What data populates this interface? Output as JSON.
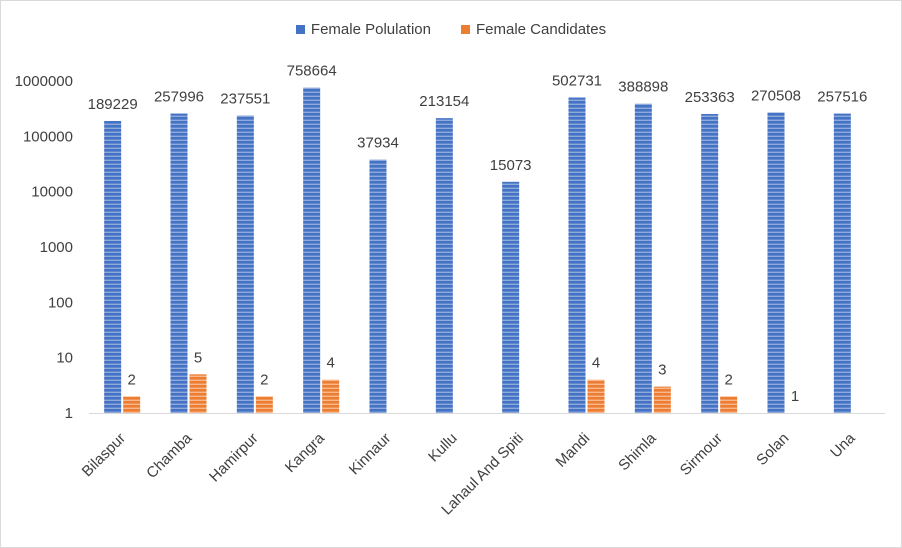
{
  "chart_data": {
    "type": "bar",
    "title": "",
    "xlabel": "",
    "ylabel": "",
    "yscale": "log",
    "ylim": [
      1,
      1000000
    ],
    "y_ticks": [
      "1",
      "10",
      "100",
      "1000",
      "10000",
      "100000",
      "1000000"
    ],
    "legend_position": "top-center",
    "grid": false,
    "categories": [
      "Bilaspur",
      "Chamba",
      "Hamirpur",
      "Kangra",
      "Kinnaur",
      "Kullu",
      "Lahaul And Spiti",
      "Mandi",
      "Shimla",
      "Sirmour",
      "Solan",
      "Una"
    ],
    "series": [
      {
        "name": "Female Polulation",
        "color": "#4472c4",
        "values": [
          189229,
          257996,
          237551,
          758664,
          37934,
          213154,
          15073,
          502731,
          388898,
          253363,
          270508,
          257516
        ],
        "labels": [
          "189229",
          "257996",
          "237551",
          "758664",
          "37934",
          "213154",
          "15073",
          "502731",
          "388898",
          "253363",
          "270508",
          "257516"
        ]
      },
      {
        "name": "Female Candidates",
        "color": "#ed7d31",
        "values": [
          2,
          5,
          2,
          4,
          null,
          null,
          null,
          4,
          3,
          2,
          1,
          null
        ],
        "labels": [
          "2",
          "5",
          "2",
          "4",
          "",
          "",
          "",
          "4",
          "3",
          "2",
          "1",
          ""
        ]
      }
    ]
  }
}
